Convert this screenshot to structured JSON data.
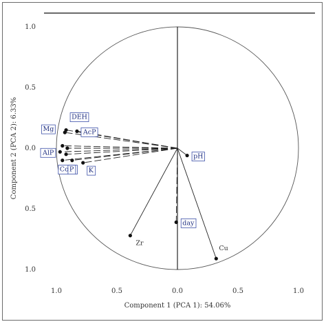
{
  "chart_data": {
    "type": "scatter",
    "subtype": "pca-correlation-circle",
    "title": "",
    "xlabel": "Component 1 (PCA 1): 54.06%",
    "ylabel": "Component 2 (PCA 2): 6.33%",
    "xlim": [
      -1.0,
      1.0
    ],
    "ylim": [
      -1.0,
      1.0
    ],
    "x_ticks": [
      {
        "value": -1.0,
        "label": "1.0"
      },
      {
        "value": -0.5,
        "label": "0.5"
      },
      {
        "value": 0.0,
        "label": "0.0"
      },
      {
        "value": 0.5,
        "label": "0.5"
      },
      {
        "value": 1.0,
        "label": "1.0"
      }
    ],
    "y_ticks": [
      {
        "value": 1.0,
        "label": "1.0"
      },
      {
        "value": 0.5,
        "label": "0.5"
      },
      {
        "value": 0.0,
        "label": "0.0"
      },
      {
        "value": -0.5,
        "label": "0.5"
      },
      {
        "value": -1.0,
        "label": "1.0"
      }
    ],
    "grid": false,
    "unit_circle": true,
    "points": [
      {
        "label": "Mg",
        "x": -0.93,
        "y": 0.13,
        "line": "dashed",
        "label_pos": "upper-left",
        "boxed": true
      },
      {
        "label": "DEH",
        "x": -0.92,
        "y": 0.15,
        "line": "dashed",
        "label_pos": "above",
        "boxed": true
      },
      {
        "label": "AcP",
        "x": -0.83,
        "y": 0.14,
        "line": "dashed",
        "label_pos": "right",
        "boxed": true
      },
      {
        "label": "",
        "x": -0.95,
        "y": 0.02,
        "line": "dashed",
        "label_pos": "none",
        "boxed": false
      },
      {
        "label": "",
        "x": -0.91,
        "y": 0.0,
        "line": "dashed",
        "label_pos": "none",
        "boxed": false
      },
      {
        "label": "AlP",
        "x": -0.97,
        "y": -0.03,
        "line": "dashed",
        "label_pos": "left",
        "boxed": true
      },
      {
        "label": "",
        "x": -0.92,
        "y": -0.05,
        "line": "dashed",
        "label_pos": "none",
        "boxed": false
      },
      {
        "label": "Corg",
        "x": -0.95,
        "y": -0.1,
        "line": "dashed",
        "label_pos": "below",
        "boxed": true
      },
      {
        "label": "P",
        "x": -0.87,
        "y": -0.1,
        "line": "dashed",
        "label_pos": "below",
        "boxed": true
      },
      {
        "label": "K",
        "x": -0.78,
        "y": -0.12,
        "line": "dashed",
        "label_pos": "below-right",
        "boxed": true
      },
      {
        "label": "pH",
        "x": 0.08,
        "y": -0.06,
        "line": "solid",
        "label_pos": "right",
        "boxed": true
      },
      {
        "label": "Zr",
        "x": -0.39,
        "y": -0.72,
        "line": "solid",
        "label_pos": "below-right",
        "boxed": false
      },
      {
        "label": "day",
        "x": -0.01,
        "y": -0.61,
        "line": "dashed",
        "label_pos": "right",
        "boxed": true
      },
      {
        "label": "Cu",
        "x": 0.32,
        "y": -0.91,
        "line": "solid",
        "label_pos": "upper-right",
        "boxed": false
      }
    ]
  }
}
